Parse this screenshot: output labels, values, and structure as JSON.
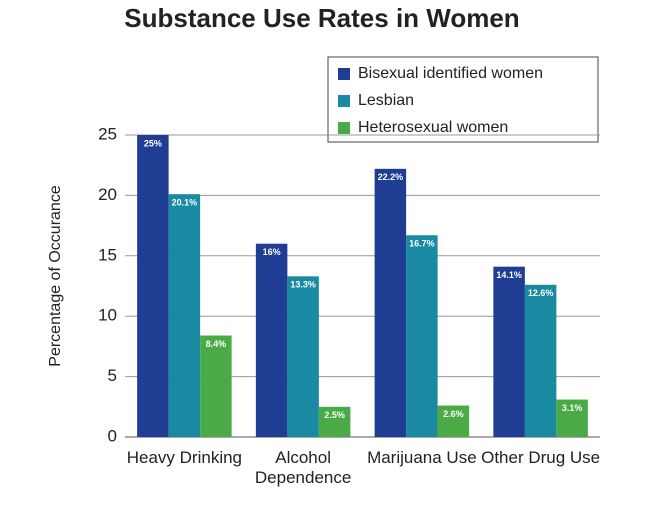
{
  "chart_data": {
    "type": "bar",
    "title": "Substance Use Rates in Women",
    "y_label": "Percentage of Occurance",
    "categories": [
      "Heavy Drinking",
      "Alcohol Dependence",
      "Marijuana Use",
      "Other Drug Use"
    ],
    "series": [
      {
        "name": "Bisexual identified women",
        "color": "#1f3e93",
        "values": [
          25,
          16,
          22.2,
          14.1
        ],
        "value_labels": [
          "25%",
          "16%",
          "22.2%",
          "14.1%"
        ]
      },
      {
        "name": "Lesbian",
        "color": "#1a8aa3",
        "values": [
          20.1,
          13.3,
          16.7,
          12.6
        ],
        "value_labels": [
          "20.1%",
          "13.3%",
          "16.7%",
          "12.6%"
        ]
      },
      {
        "name": "Heterosexual women",
        "color": "#4aab46",
        "values": [
          8.4,
          2.5,
          2.6,
          3.1
        ],
        "value_labels": [
          "8.4%",
          "2.5%",
          "2.6%",
          "3.1%"
        ]
      }
    ],
    "ylim": [
      0,
      25
    ],
    "yticks": [
      0,
      5,
      10,
      15,
      20,
      25
    ],
    "grid": true,
    "legend": "upper right"
  }
}
